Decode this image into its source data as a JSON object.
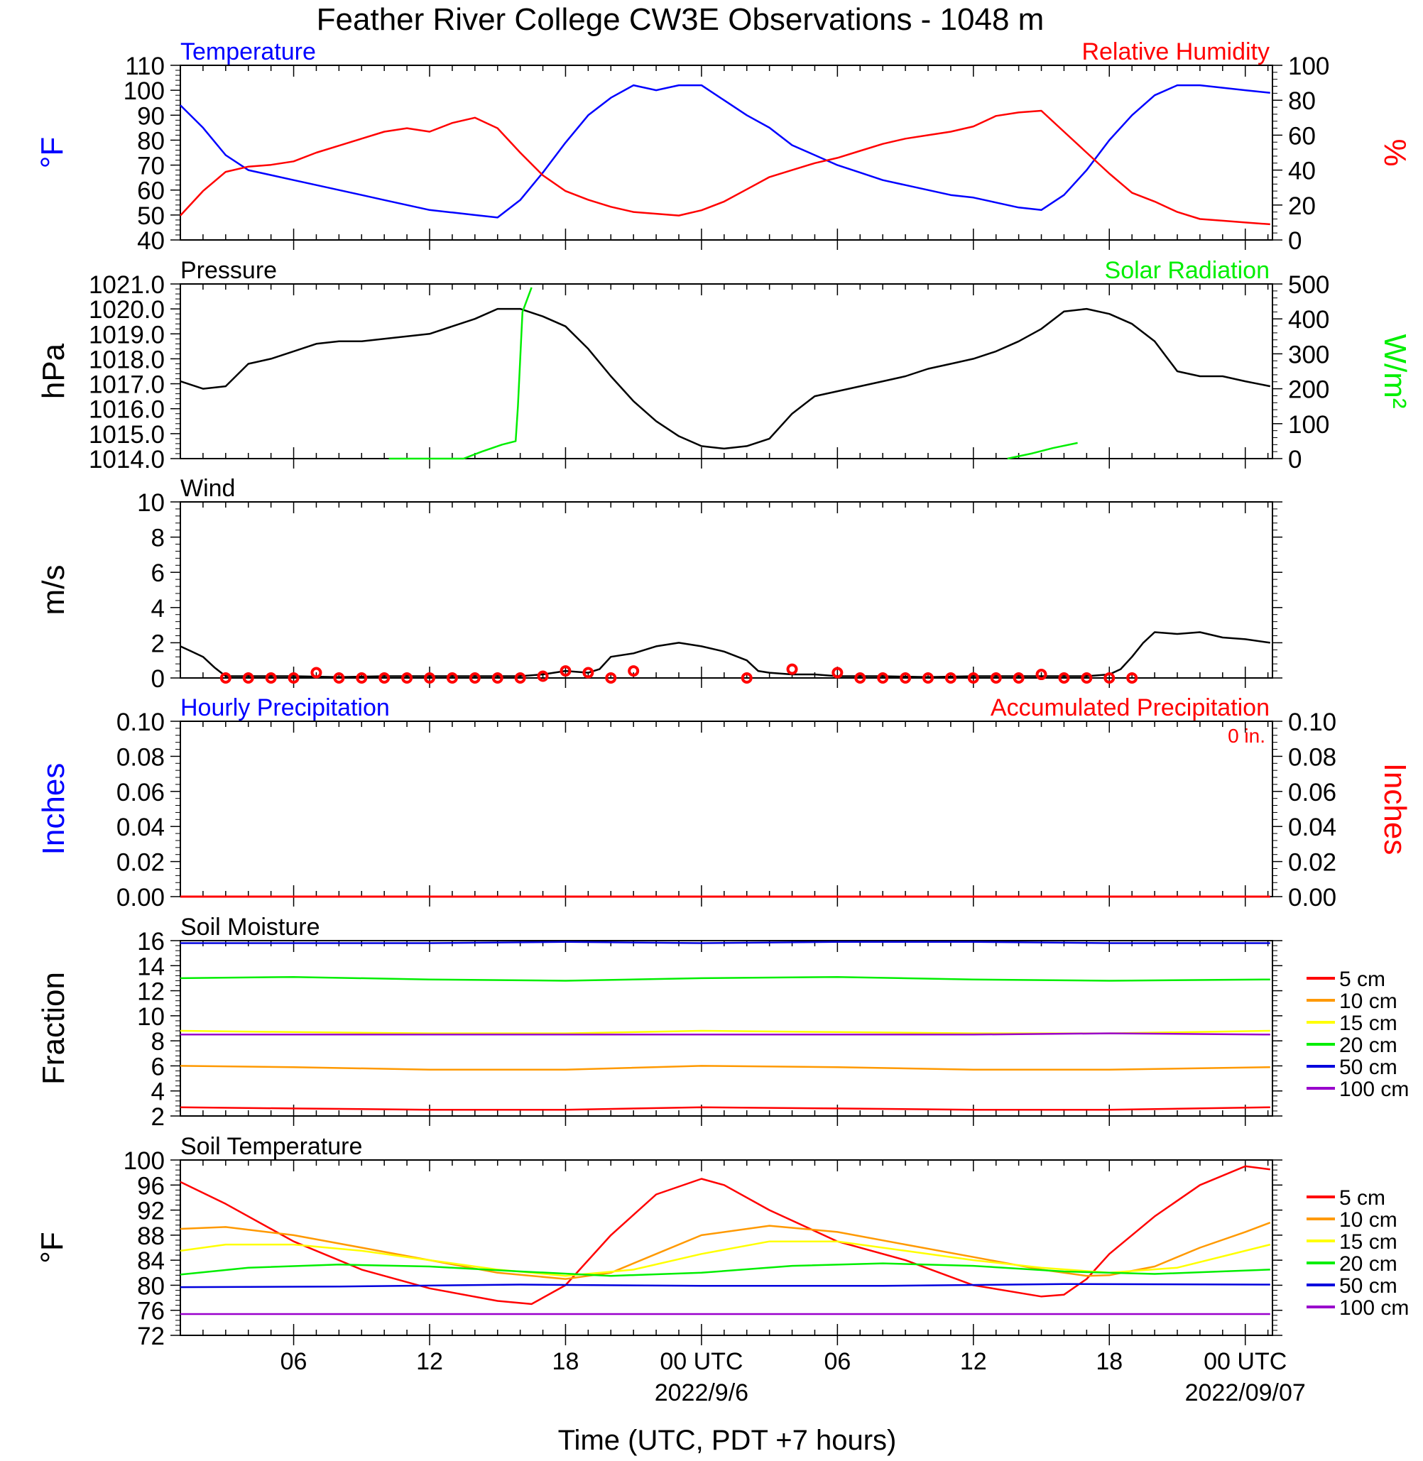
{
  "title": "Feather River College CW3E Observations - 1048 m",
  "xaxis": {
    "label": "Time (UTC, PDT +7 hours)",
    "ticks": [
      "06",
      "12",
      "18",
      "00 UTC",
      "06",
      "12",
      "18",
      "00 UTC"
    ],
    "tick_hours": [
      6,
      12,
      18,
      24,
      30,
      36,
      42,
      48
    ],
    "dates": [
      {
        "text": "2022/9/6",
        "hour": 24
      },
      {
        "text": "2022/09/07",
        "hour": 48
      }
    ],
    "range_hours": [
      1,
      49.2
    ]
  },
  "legend": {
    "items": [
      {
        "label": "5 cm",
        "color": "#ff0000"
      },
      {
        "label": "10 cm",
        "color": "#ff9900"
      },
      {
        "label": "15 cm",
        "color": "#ffff00"
      },
      {
        "label": "20 cm",
        "color": "#00ee00"
      },
      {
        "label": "50 cm",
        "color": "#0000dd"
      },
      {
        "label": "100 cm",
        "color": "#9900cc"
      }
    ]
  },
  "chart_data": [
    {
      "type": "line",
      "panel": "temperature",
      "label_left": "Temperature",
      "label_right": "Relative Humidity",
      "ylabel_left": "°F",
      "ylabel_right": "%",
      "ylim_left": [
        40,
        110
      ],
      "yticks_left": [
        "40",
        "50",
        "60",
        "70",
        "80",
        "90",
        "100",
        "110"
      ],
      "ylim_right": [
        0,
        100
      ],
      "yticks_right": [
        "0",
        "20",
        "40",
        "60",
        "80",
        "100"
      ],
      "series": [
        {
          "name": "Temperature",
          "axis": "left",
          "color": "#0000ff",
          "x": [
            1,
            2,
            3,
            4,
            5,
            6,
            7,
            8,
            9,
            10,
            11,
            12,
            13,
            14,
            15,
            16,
            17,
            18,
            19,
            20,
            21,
            22,
            23,
            24,
            25,
            26,
            27,
            28,
            29,
            30,
            31,
            32,
            33,
            34,
            35,
            36,
            37,
            38,
            39,
            40,
            41,
            42,
            43,
            44,
            45,
            46,
            47,
            48,
            49.1
          ],
          "y": [
            94,
            85,
            74,
            68,
            66,
            64,
            62,
            60,
            58,
            56,
            54,
            52,
            51,
            50,
            49,
            56,
            67,
            79,
            90,
            97,
            102,
            100,
            102,
            102,
            96,
            90,
            85,
            78,
            74,
            70,
            67,
            64,
            62,
            60,
            58,
            57,
            55,
            53,
            52,
            58,
            68,
            80,
            90,
            98,
            102,
            102,
            101,
            100,
            99
          ]
        },
        {
          "name": "Relative Humidity",
          "axis": "right",
          "color": "#ff0000",
          "x": [
            1,
            2,
            3,
            4,
            5,
            6,
            7,
            8,
            9,
            10,
            11,
            12,
            13,
            14,
            15,
            16,
            17,
            18,
            19,
            20,
            21,
            22,
            23,
            24,
            25,
            26,
            27,
            28,
            29,
            30,
            31,
            32,
            33,
            34,
            35,
            36,
            37,
            38,
            39,
            40,
            41,
            42,
            43,
            44,
            45,
            46,
            47,
            48,
            49.1
          ],
          "y": [
            14,
            28,
            39,
            42,
            43,
            45,
            50,
            54,
            58,
            62,
            64,
            62,
            67,
            70,
            64,
            50,
            37,
            28,
            23,
            19,
            16,
            15,
            14,
            17,
            22,
            29,
            36,
            40,
            44,
            47,
            51,
            55,
            58,
            60,
            62,
            65,
            71,
            73,
            74,
            62,
            50,
            38,
            27,
            22,
            16,
            12,
            11,
            10,
            9
          ]
        }
      ]
    },
    {
      "type": "line",
      "panel": "pressure",
      "label_left": "Pressure",
      "label_right": "Solar Radiation",
      "ylabel_left": "hPa",
      "ylabel_right": "W/m²",
      "ylim_left": [
        1014,
        1021
      ],
      "yticks_left": [
        "1014.0",
        "1015.0",
        "1016.0",
        "1017.0",
        "1018.0",
        "1019.0",
        "1020.0",
        "1021.0"
      ],
      "ylim_right": [
        0,
        500
      ],
      "yticks_right": [
        "0",
        "100",
        "200",
        "300",
        "400",
        "500"
      ],
      "series": [
        {
          "name": "Pressure",
          "axis": "left",
          "color": "#000000",
          "x": [
            1,
            2,
            3,
            4,
            5,
            6,
            7,
            8,
            9,
            10,
            11,
            12,
            13,
            14,
            15,
            16,
            17,
            18,
            19,
            20,
            21,
            22,
            23,
            24,
            25,
            26,
            27,
            28,
            29,
            30,
            31,
            32,
            33,
            34,
            35,
            36,
            37,
            38,
            39,
            40,
            41,
            42,
            43,
            44,
            45,
            46,
            47,
            48,
            49.1
          ],
          "y": [
            1017.1,
            1016.8,
            1016.9,
            1017.8,
            1018.0,
            1018.3,
            1018.6,
            1018.7,
            1018.7,
            1018.8,
            1018.9,
            1019.0,
            1019.3,
            1019.6,
            1020.0,
            1020.0,
            1019.7,
            1019.3,
            1018.4,
            1017.3,
            1016.3,
            1015.5,
            1014.9,
            1014.5,
            1014.4,
            1014.5,
            1014.8,
            1015.8,
            1016.5,
            1016.7,
            1016.9,
            1017.1,
            1017.3,
            1017.6,
            1017.8,
            1018.0,
            1018.3,
            1018.7,
            1019.2,
            1019.9,
            1020.0,
            1019.8,
            1019.4,
            1018.7,
            1017.5,
            1017.3,
            1017.3,
            1017.1,
            1016.9
          ]
        },
        {
          "name": "Solar Radiation",
          "axis": "right",
          "color": "#00ee00",
          "segment": 1,
          "x": [
            10.2,
            12,
            13.5,
            14.3,
            15.2,
            15.8,
            15.9,
            16.1,
            16.5
          ],
          "y": [
            0,
            0,
            0,
            20,
            40,
            50,
            150,
            420,
            490
          ]
        },
        {
          "name": "Solar Radiation",
          "axis": "right",
          "color": "#00ee00",
          "segment": 2,
          "x": [
            37.5,
            38.6,
            39.5,
            40.6
          ],
          "y": [
            0,
            15,
            30,
            45
          ]
        }
      ]
    },
    {
      "type": "line",
      "panel": "wind",
      "label_left": "Wind",
      "ylabel_left": "m/s",
      "ylim_left": [
        0,
        10
      ],
      "yticks_left": [
        "0",
        "2",
        "4",
        "6",
        "8",
        "10"
      ],
      "series": [
        {
          "name": "Wind",
          "axis": "left",
          "color": "#000000",
          "x": [
            1,
            1.5,
            2,
            2.5,
            3,
            4,
            6,
            8,
            10,
            12,
            14,
            16,
            17,
            18,
            19,
            19.5,
            20,
            21,
            22,
            23,
            24,
            25,
            26,
            26.5,
            27,
            28,
            29,
            30,
            32,
            34,
            36,
            38,
            40,
            41,
            42,
            42.5,
            43,
            43.5,
            44,
            45,
            46,
            47,
            48,
            49.1
          ],
          "y": [
            1.8,
            1.5,
            1.2,
            0.6,
            0.1,
            0.1,
            0.1,
            0.05,
            0.1,
            0.1,
            0.1,
            0.1,
            0.2,
            0.4,
            0.3,
            0.5,
            1.2,
            1.4,
            1.8,
            2.0,
            1.8,
            1.5,
            1.0,
            0.4,
            0.3,
            0.2,
            0.2,
            0.1,
            0.1,
            0.05,
            0.1,
            0.1,
            0.1,
            0.1,
            0.2,
            0.5,
            1.2,
            2.0,
            2.6,
            2.5,
            2.6,
            2.3,
            2.2,
            2.0
          ]
        }
      ],
      "calm_markers": {
        "color": "#ff0000",
        "x": [
          3,
          4,
          5,
          6,
          7,
          8,
          9,
          10,
          11,
          12,
          13,
          14,
          15,
          16,
          17,
          18,
          19,
          20,
          21,
          26,
          28,
          30,
          31,
          32,
          33,
          34,
          35,
          36,
          37,
          38,
          39,
          40,
          41,
          42,
          43
        ],
        "y": [
          0,
          0,
          0,
          0,
          0.3,
          0,
          0,
          0,
          0,
          0,
          0,
          0,
          0,
          0,
          0.1,
          0.4,
          0.3,
          0,
          0.4,
          0,
          0.5,
          0.3,
          0,
          0,
          0,
          0,
          0,
          0,
          0,
          0,
          0.2,
          0,
          0,
          0,
          0
        ]
      }
    },
    {
      "type": "line",
      "panel": "precipitation",
      "label_left": "Hourly Precipitation",
      "label_right": "Accumulated Precipitation",
      "annotation": "0 in.",
      "ylabel_left": "Inches",
      "ylabel_right": "Inches",
      "ylim_left": [
        0,
        0.1
      ],
      "yticks_left": [
        "0.00",
        "0.02",
        "0.04",
        "0.06",
        "0.08",
        "0.10"
      ],
      "ylim_right": [
        0,
        0.1
      ],
      "yticks_right": [
        "0.00",
        "0.02",
        "0.04",
        "0.06",
        "0.08",
        "0.10"
      ],
      "series": [
        {
          "name": "Hourly Precipitation",
          "axis": "left",
          "color": "#0000ff",
          "x": [
            1,
            49.1
          ],
          "y": [
            0,
            0
          ]
        },
        {
          "name": "Accumulated Precipitation",
          "axis": "right",
          "color": "#ff0000",
          "x": [
            1,
            49.1
          ],
          "y": [
            0,
            0
          ]
        }
      ]
    },
    {
      "type": "line",
      "panel": "soil-moisture",
      "label_left": "Soil Moisture",
      "ylabel_left": "Fraction",
      "ylim_left": [
        2,
        16
      ],
      "yticks_left": [
        "2",
        "4",
        "6",
        "8",
        "10",
        "12",
        "14",
        "16"
      ],
      "series": [
        {
          "name": "5 cm",
          "axis": "left",
          "color": "#ff0000",
          "x": [
            1,
            6,
            12,
            18,
            24,
            30,
            36,
            42,
            49.1
          ],
          "y": [
            2.7,
            2.6,
            2.5,
            2.5,
            2.7,
            2.6,
            2.5,
            2.5,
            2.7
          ]
        },
        {
          "name": "10 cm",
          "axis": "left",
          "color": "#ff9900",
          "x": [
            1,
            6,
            12,
            18,
            24,
            30,
            36,
            42,
            49.1
          ],
          "y": [
            6.0,
            5.9,
            5.7,
            5.7,
            6.0,
            5.9,
            5.7,
            5.7,
            5.9
          ]
        },
        {
          "name": "15 cm",
          "axis": "left",
          "color": "#ffff00",
          "x": [
            1,
            6,
            12,
            18,
            24,
            30,
            36,
            42,
            49.1
          ],
          "y": [
            8.8,
            8.7,
            8.6,
            8.6,
            8.8,
            8.7,
            8.6,
            8.6,
            8.8
          ]
        },
        {
          "name": "20 cm",
          "axis": "left",
          "color": "#00ee00",
          "x": [
            1,
            6,
            12,
            18,
            24,
            30,
            36,
            42,
            49.1
          ],
          "y": [
            13.0,
            13.1,
            12.9,
            12.8,
            13.0,
            13.1,
            12.9,
            12.8,
            12.9
          ]
        },
        {
          "name": "50 cm",
          "axis": "left",
          "color": "#0000dd",
          "x": [
            1,
            6,
            12,
            18,
            24,
            30,
            36,
            42,
            49.1
          ],
          "y": [
            15.8,
            15.8,
            15.8,
            15.9,
            15.8,
            15.9,
            15.9,
            15.8,
            15.8
          ]
        },
        {
          "name": "100 cm",
          "axis": "left",
          "color": "#9900cc",
          "x": [
            1,
            6,
            12,
            18,
            24,
            30,
            36,
            42,
            49.1
          ],
          "y": [
            8.5,
            8.5,
            8.5,
            8.5,
            8.5,
            8.5,
            8.5,
            8.6,
            8.5
          ]
        }
      ]
    },
    {
      "type": "line",
      "panel": "soil-temperature",
      "label_left": "Soil Temperature",
      "ylabel_left": "°F",
      "ylim_left": [
        72,
        100
      ],
      "yticks_left": [
        "72",
        "76",
        "80",
        "84",
        "88",
        "92",
        "96",
        "100"
      ],
      "series": [
        {
          "name": "5 cm",
          "axis": "left",
          "color": "#ff0000",
          "x": [
            1,
            3,
            6,
            9,
            12,
            15,
            16.5,
            18,
            20,
            22,
            24,
            25,
            27,
            30,
            33,
            36,
            39,
            40,
            41,
            42,
            44,
            46,
            48,
            49.1
          ],
          "y": [
            96.5,
            93,
            87,
            82.5,
            79.5,
            77.5,
            77,
            80,
            88,
            94.5,
            97,
            96,
            92,
            87,
            84,
            80,
            78.2,
            78.5,
            81,
            85,
            91,
            96,
            99,
            98.5
          ]
        },
        {
          "name": "10 cm",
          "axis": "left",
          "color": "#ff9900",
          "x": [
            1,
            3,
            6,
            9,
            12,
            15,
            18,
            20,
            22,
            24,
            27,
            30,
            33,
            36,
            39,
            41,
            42,
            44,
            46,
            48,
            49.1
          ],
          "y": [
            89,
            89.3,
            88,
            86,
            84,
            82,
            81,
            82,
            85,
            88,
            89.5,
            88.5,
            86.5,
            84.5,
            82.5,
            81.5,
            81.6,
            83,
            86,
            88.5,
            90
          ]
        },
        {
          "name": "15 cm",
          "axis": "left",
          "color": "#ffff00",
          "x": [
            1,
            3,
            6,
            9,
            12,
            15,
            18,
            21,
            24,
            27,
            30,
            33,
            36,
            39,
            42,
            45,
            48,
            49.1
          ],
          "y": [
            85.5,
            86.5,
            86.5,
            85.5,
            84,
            82.5,
            81.5,
            82.5,
            85,
            87,
            87,
            85.5,
            84,
            82.8,
            82,
            82.8,
            85.5,
            86.5
          ]
        },
        {
          "name": "20 cm",
          "axis": "left",
          "color": "#00ee00",
          "x": [
            1,
            4,
            8,
            12,
            16,
            20,
            24,
            28,
            32,
            36,
            40,
            44,
            49.1
          ],
          "y": [
            81.7,
            82.8,
            83.3,
            83,
            82.2,
            81.5,
            82,
            83.1,
            83.5,
            83.1,
            82.2,
            81.8,
            82.5
          ]
        },
        {
          "name": "50 cm",
          "axis": "left",
          "color": "#0000dd",
          "x": [
            1,
            8,
            16,
            24,
            32,
            40,
            49.1
          ],
          "y": [
            79.7,
            79.8,
            80.1,
            79.9,
            79.9,
            80.2,
            80.1
          ]
        },
        {
          "name": "100 cm",
          "axis": "left",
          "color": "#9900cc",
          "x": [
            1,
            49.1
          ],
          "y": [
            75.4,
            75.4
          ]
        }
      ]
    }
  ]
}
